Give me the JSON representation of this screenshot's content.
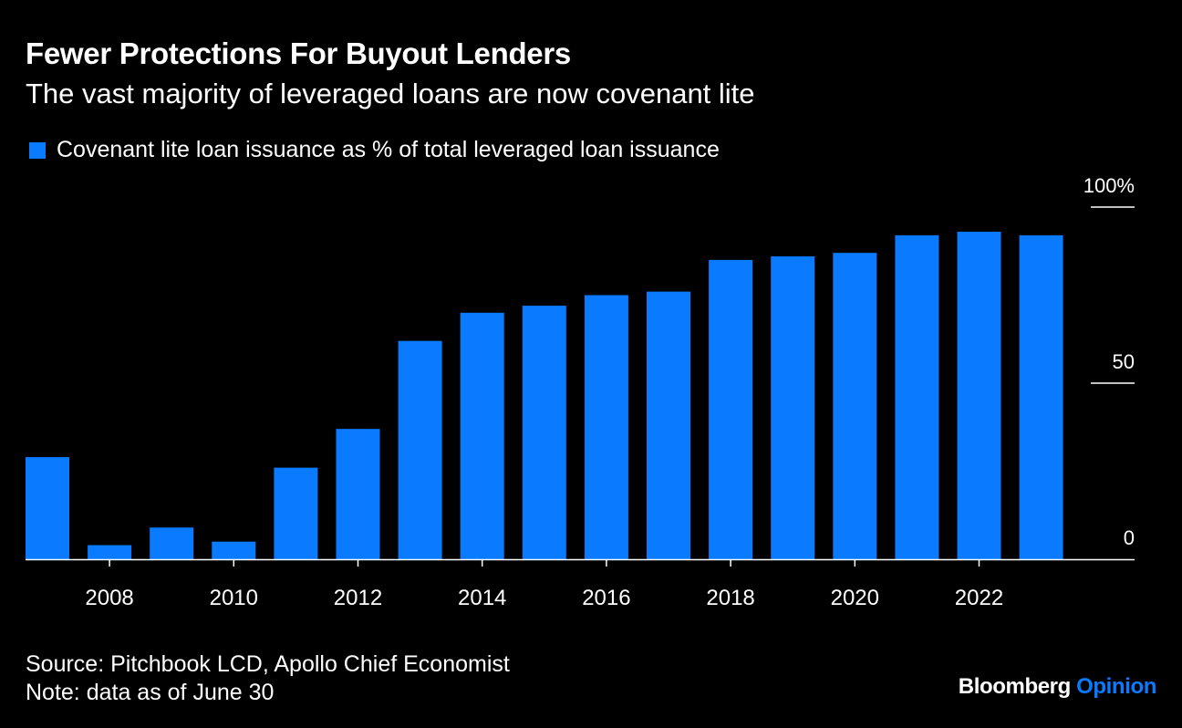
{
  "header": {
    "title": "Fewer Protections For Buyout Lenders",
    "subtitle": "The vast majority of leveraged loans are now covenant lite"
  },
  "colors": {
    "background": "#000000",
    "bar": "#0a7aff",
    "text": "#ffffff"
  },
  "chart_data": {
    "type": "bar",
    "title": "Fewer Protections For Buyout Lenders",
    "subtitle": "The vast majority of leveraged loans are now covenant lite",
    "series": [
      {
        "name": "Covenant lite loan issuance as % of total leveraged loan issuance",
        "values": [
          29,
          4,
          9,
          5,
          26,
          37,
          62,
          70,
          72,
          75,
          76,
          85,
          86,
          87,
          92,
          93,
          92
        ]
      }
    ],
    "categories": [
      "2007",
      "2008",
      "2009",
      "2010",
      "2011",
      "2012",
      "2013",
      "2014",
      "2015",
      "2016",
      "2017",
      "2018",
      "2019",
      "2020",
      "2021",
      "2022",
      "2023"
    ],
    "x_tick_labels": [
      "2008",
      "2010",
      "2012",
      "2014",
      "2016",
      "2018",
      "2020",
      "2022"
    ],
    "y_tick_labels": [
      "100%",
      "50",
      "0"
    ],
    "y_ticks": [
      100,
      50,
      0
    ],
    "ylim": [
      0,
      100
    ],
    "xlabel": "",
    "ylabel": "",
    "legend_position": "top-left",
    "grid": false
  },
  "footer": {
    "source": "Source: Pitchbook LCD, Apollo Chief Economist",
    "note": "Note: data as of June 30",
    "brand_main": "Bloomberg",
    "brand_accent": "Opinion"
  }
}
